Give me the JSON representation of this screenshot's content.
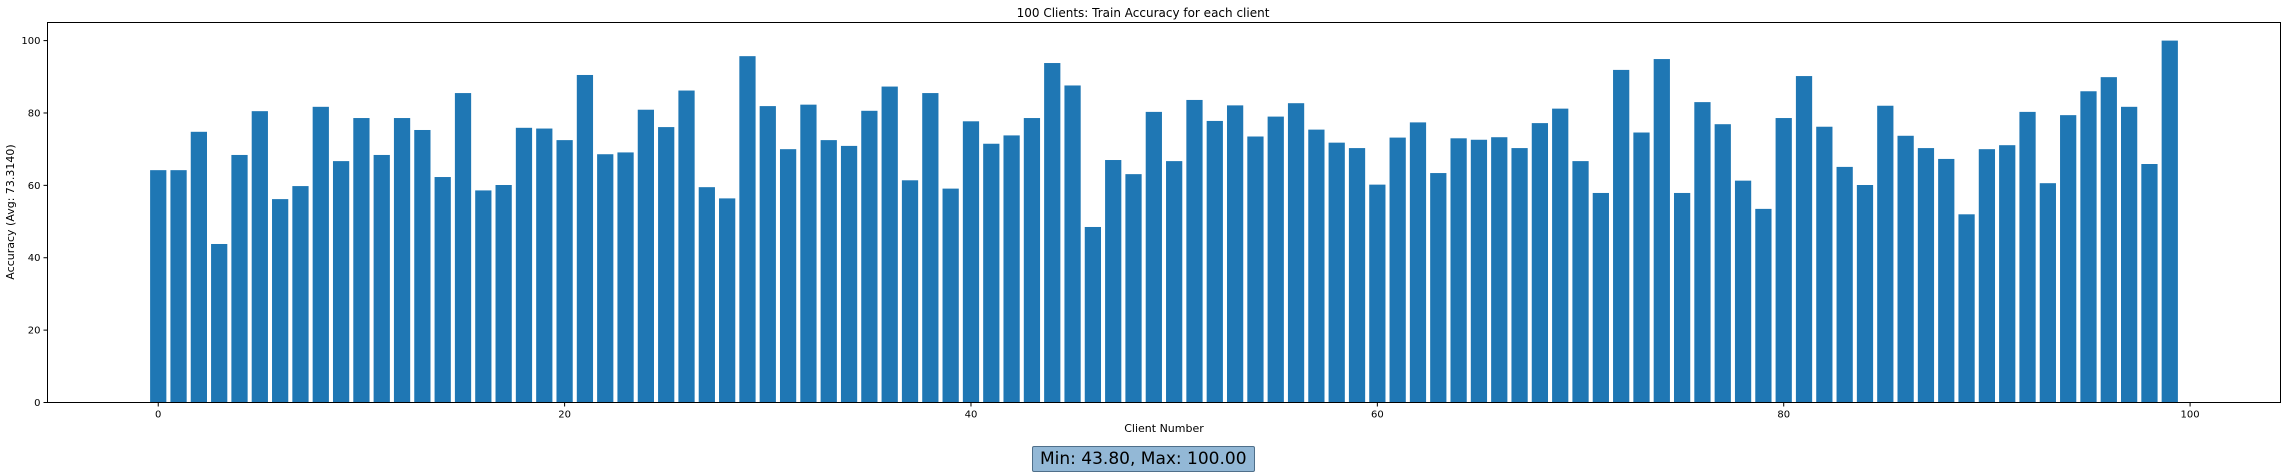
{
  "chart_data": {
    "type": "bar",
    "title": "100 Clients: Train Accuracy for each client",
    "xlabel": "Client Number",
    "ylabel": "Accuracy (Avg: 73.3140)",
    "x": [
      0,
      1,
      2,
      3,
      4,
      5,
      6,
      7,
      8,
      9,
      10,
      11,
      12,
      13,
      14,
      15,
      16,
      17,
      18,
      19,
      20,
      21,
      22,
      23,
      24,
      25,
      26,
      27,
      28,
      29,
      30,
      31,
      32,
      33,
      34,
      35,
      36,
      37,
      38,
      39,
      40,
      41,
      42,
      43,
      44,
      45,
      46,
      47,
      48,
      49,
      50,
      51,
      52,
      53,
      54,
      55,
      56,
      57,
      58,
      59,
      60,
      61,
      62,
      63,
      64,
      65,
      66,
      67,
      68,
      69,
      70,
      71,
      72,
      73,
      74,
      75,
      76,
      77,
      78,
      79,
      80,
      81,
      82,
      83,
      84,
      85,
      86,
      87,
      88,
      89,
      90,
      91,
      92,
      93,
      94,
      95,
      96,
      97,
      98,
      99
    ],
    "values": [
      64.2,
      64.2,
      74.8,
      43.8,
      68.4,
      80.5,
      56.2,
      59.8,
      81.7,
      66.7,
      78.6,
      68.4,
      78.6,
      75.3,
      62.3,
      85.5,
      58.6,
      60.1,
      75.9,
      75.7,
      72.5,
      90.5,
      68.6,
      69.1,
      80.9,
      76.1,
      86.2,
      59.5,
      56.4,
      95.7,
      81.9,
      70.0,
      82.3,
      72.5,
      70.9,
      80.6,
      87.3,
      61.4,
      85.5,
      59.1,
      77.7,
      71.5,
      73.8,
      78.6,
      93.8,
      87.6,
      48.5,
      67.0,
      63.1,
      80.3,
      66.7,
      83.6,
      77.8,
      82.1,
      73.5,
      79.0,
      82.7,
      75.4,
      71.8,
      70.3,
      60.2,
      73.2,
      77.4,
      63.4,
      73.0,
      72.6,
      73.3,
      70.3,
      77.2,
      81.2,
      66.7,
      57.9,
      91.9,
      74.6,
      94.9,
      57.9,
      83.0,
      76.9,
      61.3,
      53.5,
      78.6,
      90.2,
      76.2,
      65.1,
      60.1,
      82.0,
      73.7,
      70.3,
      67.3,
      52.0,
      70.0,
      71.1,
      80.3,
      60.6,
      79.4,
      86.0,
      89.9,
      81.7,
      65.9,
      100.0
    ],
    "xlim": [
      -5.45,
      104.45
    ],
    "ylim": [
      0,
      105
    ],
    "xticks": [
      0,
      20,
      40,
      60,
      80,
      100
    ],
    "yticks": [
      0,
      20,
      40,
      60,
      80,
      100
    ],
    "bar_color": "#1f77b4",
    "grid": false,
    "legend": "none"
  },
  "stats": {
    "label": "Min: 43.80, Max: 100.00",
    "box_color": "#93b8d6"
  }
}
